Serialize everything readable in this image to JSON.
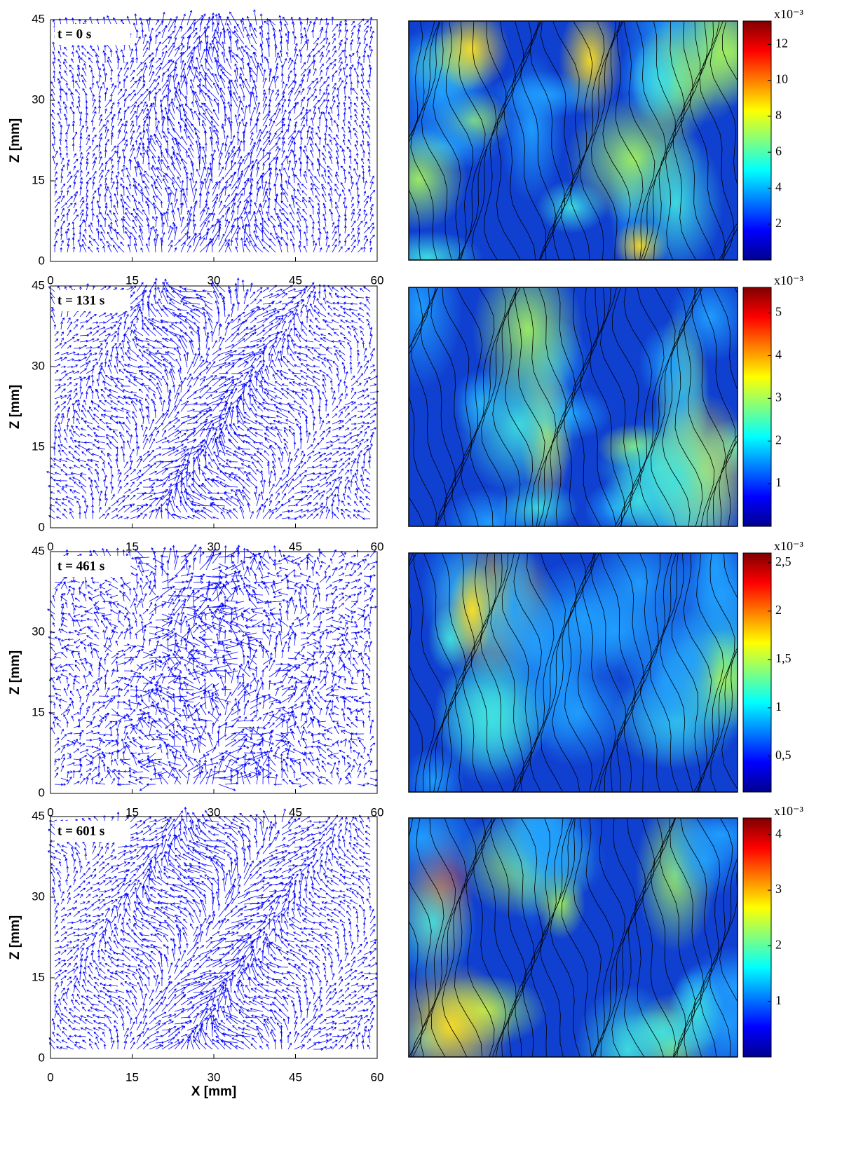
{
  "chart_data": [
    {
      "type": "quiver",
      "annotation": "t = 0 s",
      "ylabel": "Z [mm]",
      "xlim": [
        0,
        60
      ],
      "ylim": [
        0,
        45
      ],
      "xticks": [
        0,
        15,
        30,
        45,
        60
      ],
      "yticks": [
        0,
        15,
        30,
        45
      ],
      "color": "#0000ff"
    },
    {
      "type": "heatmap",
      "colorbar_label": "x10⁻³",
      "clim": [
        0,
        13.3
      ],
      "cticks": [
        2,
        4,
        6,
        8,
        10,
        12
      ]
    },
    {
      "type": "quiver",
      "annotation": "t = 131 s",
      "ylabel": "Z [mm]",
      "xlim": [
        0,
        60
      ],
      "ylim": [
        0,
        45
      ],
      "xticks": [
        0,
        15,
        30,
        45,
        60
      ],
      "yticks": [
        0,
        15,
        30,
        45
      ],
      "color": "#0000ff"
    },
    {
      "type": "heatmap",
      "colorbar_label": "x10⁻³",
      "clim": [
        0,
        5.6
      ],
      "cticks": [
        1,
        2,
        3,
        4,
        5
      ]
    },
    {
      "type": "quiver",
      "annotation": "t = 461 s",
      "ylabel": "Z [mm]",
      "xlim": [
        0,
        60
      ],
      "ylim": [
        0,
        45
      ],
      "xticks": [
        0,
        15,
        30,
        45,
        60
      ],
      "yticks": [
        0,
        15,
        30,
        45
      ],
      "color": "#0000ff"
    },
    {
      "type": "heatmap",
      "colorbar_label": "x10⁻³",
      "clim": [
        0.13,
        2.6
      ],
      "cticks": [
        {
          "value": 0.5,
          "label": "0,5"
        },
        1,
        {
          "value": 1.5,
          "label": "1,5"
        },
        2,
        {
          "value": 2.5,
          "label": "2,5"
        }
      ]
    },
    {
      "type": "quiver",
      "annotation": "t = 601 s",
      "ylabel": "Z [mm]",
      "xlabel": "X [mm]",
      "xlim": [
        0,
        60
      ],
      "ylim": [
        0,
        45
      ],
      "xticks": [
        0,
        15,
        30,
        45,
        60
      ],
      "yticks": [
        0,
        15,
        30,
        45
      ],
      "color": "#0000ff"
    },
    {
      "type": "heatmap",
      "colorbar_label": "x10⁻³",
      "clim": [
        0,
        4.3
      ],
      "cticks": [
        1,
        2,
        3,
        4
      ]
    }
  ]
}
